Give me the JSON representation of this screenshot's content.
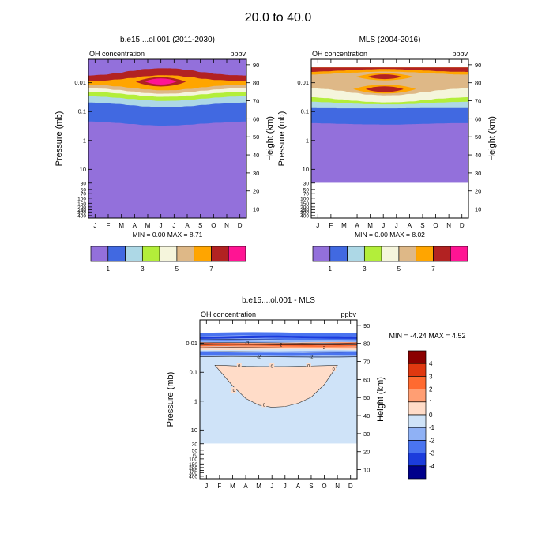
{
  "figure_title": "20.0 to  40.0",
  "months": [
    "J",
    "F",
    "M",
    "A",
    "M",
    "J",
    "J",
    "A",
    "S",
    "O",
    "N",
    "D"
  ],
  "pressure_ticks": [
    "0.01",
    "0.1",
    "1",
    "10",
    "30",
    "50",
    "70",
    "100",
    "150",
    "200",
    "250",
    "300",
    "400"
  ],
  "height_ticks": [
    "10",
    "20",
    "30",
    "40",
    "50",
    "60",
    "70",
    "80",
    "90"
  ],
  "colors": {
    "main_levels": [
      "#9370db",
      "#4169e1",
      "#add8e6",
      "#b3ee3a",
      "#f5f5dc",
      "#deb887",
      "#ffa500",
      "#b22222",
      "#ff1493"
    ],
    "diff_levels": [
      "#00008b",
      "#1c3cdc",
      "#4a74f0",
      "#8fb1f5",
      "#cfe3f8",
      "#ffdcc8",
      "#ff9e73",
      "#ff6a30",
      "#e03810",
      "#8b0000"
    ],
    "missing": "#ffffff"
  },
  "chart_data": [
    {
      "type": "heatmap",
      "title": "b.e15....ol.001 (2011-2030)",
      "variable_label": "OH concentration",
      "units_label": "ppbv",
      "xlabel": "",
      "ylabel": "Pressure (mb)",
      "right_ylabel": "Height (km)",
      "stats_label": "MIN =  0.00  MAX =  8.71",
      "min": 0.0,
      "max": 8.71,
      "x_range": [
        0,
        12
      ],
      "height_range_km": [
        5,
        93
      ],
      "data_top_km": 93,
      "colorbar_labels": [
        "1",
        "3",
        "5",
        "7"
      ],
      "band_boundaries_km": [
        [
          58.5,
          58.2,
          57.7,
          57.1,
          56.5,
          56.2,
          56.3,
          56.7,
          57.3,
          57.8,
          58.2,
          58.5
        ],
        [
          69.0,
          68.7,
          68.2,
          67.5,
          66.8,
          66.4,
          66.5,
          67.0,
          67.7,
          68.3,
          68.8,
          69.0
        ],
        [
          72.5,
          72.2,
          71.7,
          71.0,
          70.3,
          69.9,
          70.0,
          70.5,
          71.2,
          71.8,
          72.3,
          72.5
        ],
        [
          75.0,
          74.7,
          74.1,
          73.4,
          72.6,
          72.2,
          72.3,
          72.9,
          73.6,
          74.3,
          74.8,
          75.0
        ],
        [
          77.0,
          76.7,
          76.0,
          75.2,
          74.3,
          73.9,
          74.0,
          74.7,
          75.6,
          76.3,
          76.8,
          77.0
        ],
        [
          79.0,
          78.7,
          78.0,
          77.2,
          76.3,
          75.8,
          75.9,
          76.6,
          77.5,
          78.3,
          78.8,
          79.0
        ],
        [
          81.0,
          81.2,
          81.8,
          82.6,
          83.6,
          84.1,
          84.0,
          83.2,
          82.2,
          81.5,
          81.1,
          81.0
        ],
        [
          84.0,
          84.4,
          85.3,
          86.5,
          87.6,
          88.0,
          87.9,
          87.0,
          85.8,
          84.8,
          84.2,
          84.0
        ]
      ],
      "peaks": [
        {
          "x_month": 5.5,
          "center_km": 80.5,
          "half_width_months": 1.9,
          "half_height_km": 2.6,
          "level_index": 7
        },
        {
          "x_month": 5.5,
          "center_km": 80.7,
          "half_width_months": 1.2,
          "half_height_km": 1.7,
          "level_index": 8
        }
      ]
    },
    {
      "type": "heatmap",
      "title": "MLS (2004-2016)",
      "variable_label": "OH concentration",
      "units_label": "ppbv",
      "xlabel": "",
      "ylabel": "Pressure (mb)",
      "right_ylabel": "Height (km)",
      "stats_label": "MIN =  0.00  MAX =  8.02",
      "min": 0.0,
      "max": 8.02,
      "x_range": [
        0,
        12
      ],
      "height_range_km": [
        5,
        93
      ],
      "data_top_km": 88.5,
      "missing_below_km": 24.5,
      "colorbar_labels": [
        "1",
        "3",
        "5",
        "7"
      ],
      "band_boundaries_km": [
        [
          57.6,
          57.4,
          57.2,
          57.0,
          56.9,
          56.8,
          56.8,
          57.0,
          57.2,
          57.4,
          57.6,
          57.6
        ],
        [
          66.0,
          65.9,
          65.8,
          65.8,
          65.8,
          65.8,
          65.8,
          65.9,
          66.0,
          66.0,
          66.0,
          66.0
        ],
        [
          69.5,
          69.2,
          68.8,
          68.4,
          68.1,
          68.0,
          68.0,
          68.2,
          68.6,
          69.0,
          69.3,
          69.5
        ],
        [
          72.0,
          71.5,
          70.8,
          70.0,
          69.4,
          69.1,
          69.2,
          69.6,
          70.4,
          71.2,
          71.7,
          72.0
        ],
        [
          77.0,
          76.5,
          75.6,
          74.4,
          73.4,
          73.0,
          73.1,
          73.8,
          74.9,
          75.9,
          76.6,
          77.0
        ],
        [
          84.5,
          84.8,
          85.2,
          85.6,
          86.0,
          86.2,
          86.1,
          85.8,
          85.4,
          85.0,
          84.6,
          84.5
        ],
        [
          86.0,
          86.3,
          86.7,
          87.1,
          87.4,
          87.6,
          87.5,
          87.2,
          86.8,
          86.4,
          86.1,
          86.0
        ],
        [
          88.5,
          88.5,
          88.5,
          88.5,
          88.5,
          88.5,
          88.5,
          88.5,
          88.5,
          88.5,
          88.5,
          88.5
        ]
      ],
      "peaks": [
        {
          "x_month": 5.6,
          "center_km": 76.5,
          "half_width_months": 2.4,
          "half_height_km": 2.5,
          "level_index": 6
        },
        {
          "x_month": 5.6,
          "center_km": 83.3,
          "half_width_months": 2.2,
          "half_height_km": 2.0,
          "level_index": 6
        },
        {
          "x_month": 5.6,
          "center_km": 76.4,
          "half_width_months": 1.45,
          "half_height_km": 1.6,
          "level_index": 7
        },
        {
          "x_month": 5.6,
          "center_km": 83.3,
          "half_width_months": 1.3,
          "half_height_km": 1.3,
          "level_index": 7
        }
      ]
    },
    {
      "type": "heatmap",
      "title": "b.e15....ol.001 - MLS",
      "variable_label": "OH concentration",
      "units_label": "ppbv",
      "xlabel": "",
      "ylabel": "Pressure (mb)",
      "right_ylabel": "Height (km)",
      "stats_label": "MIN = -4.24  MAX =  4.52",
      "min": -4.24,
      "max": 4.52,
      "x_range": [
        0,
        12
      ],
      "height_range_km": [
        5,
        93
      ],
      "data_top_km": 86,
      "missing_below_km": 24.5,
      "background_level_index": 4,
      "colorbar_labels": [
        "4",
        "3",
        "2",
        "1",
        "0",
        "-1",
        "-2",
        "-3",
        "-4"
      ],
      "contour_labels": [
        "0",
        "-2",
        "2",
        "-3"
      ],
      "positive_blob": {
        "top_km": 67.2,
        "top_km_by_month": [
          67.8,
          67.9,
          67.6,
          67.3,
          67.2,
          67.2,
          67.2,
          67.3,
          67.5,
          67.7,
          67.9,
          68.0
        ],
        "bottom_km_by_month": [
          null,
          null,
          56.5,
          49.5,
          45.8,
          44.6,
          45.0,
          46.8,
          50.2,
          57.2,
          null,
          null
        ],
        "x_start_month": 1.15,
        "x_end_month": 10.6
      },
      "layers": [
        {
          "bottom_km": 72.4,
          "top_km": 73.4,
          "level_index": 3
        },
        {
          "bottom_km": 73.4,
          "top_km": 75.0,
          "level_index": 2
        },
        {
          "bottom_km": 75.0,
          "top_km": 75.9,
          "level_index": 3
        },
        {
          "bottom_km": 75.9,
          "top_km": 76.6,
          "level_index": 4
        },
        {
          "bottom_km": 76.6,
          "top_km": 77.4,
          "level_index": 5
        },
        {
          "bottom_km": 77.4,
          "top_km": 78.4,
          "level_index": 6
        },
        {
          "bottom_km": 78.4,
          "top_km": 79.2,
          "level_index": 7
        },
        {
          "bottom_km": 79.2,
          "top_km": 80.0,
          "level_index": 8
        },
        {
          "bottom_km": 80.0,
          "top_km": 80.6,
          "level_index": 6
        },
        {
          "bottom_km": 80.6,
          "top_km": 81.6,
          "level_index": 3
        },
        {
          "bottom_km": 81.6,
          "top_km": 82.8,
          "level_index": 2
        },
        {
          "bottom_km": 82.8,
          "top_km": 84.2,
          "level_index": 1
        },
        {
          "bottom_km": 84.2,
          "top_km": 86.0,
          "level_index": 2
        }
      ]
    }
  ]
}
